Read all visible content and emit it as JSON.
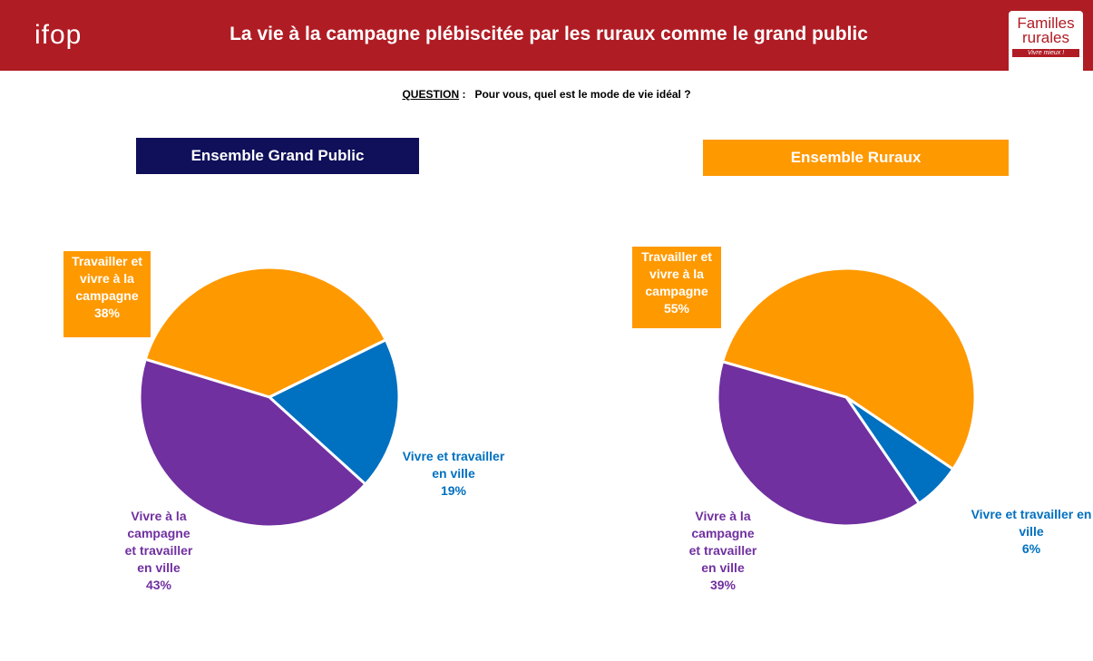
{
  "header": {
    "title": "La vie à la campagne plébiscitée par les ruraux comme le grand public",
    "logo_left": "ifop",
    "logo_right": "Familles rurales",
    "logo_right_tagline": "Vivre mieux !"
  },
  "question": {
    "label": "QUESTION",
    "label_suffix": ":",
    "text": "Pour vous, quel est le mode de vie idéal ?"
  },
  "chart_data": [
    {
      "type": "pie",
      "title": "Ensemble Grand Public",
      "categories": [
        "Travailler et vivre à la campagne",
        "Vivre et travailler en ville",
        "Vivre à la campagne et travailler en ville"
      ],
      "values": [
        38,
        19,
        43
      ],
      "value_labels": [
        "38%",
        "19%",
        "43%"
      ],
      "colors": [
        "#ff9900",
        "#0070c0",
        "#7030a0"
      ]
    },
    {
      "type": "pie",
      "title": "Ensemble Ruraux",
      "categories": [
        "Travailler et vivre à la campagne",
        "Vivre et travailler en ville",
        "Vivre à la campagne et travailler en ville"
      ],
      "values": [
        55,
        6,
        39
      ],
      "value_labels": [
        "55%",
        "6%",
        "39%"
      ],
      "colors": [
        "#ff9900",
        "#0070c0",
        "#7030a0"
      ]
    }
  ]
}
